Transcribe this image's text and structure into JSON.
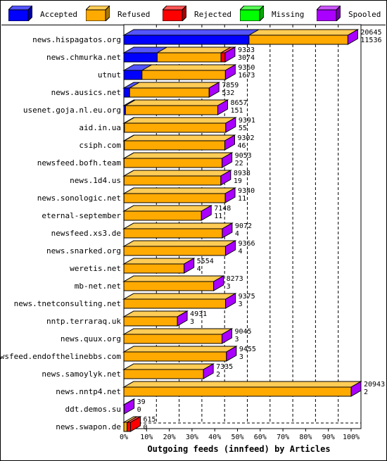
{
  "legend": [
    {
      "label": "Accepted",
      "color": "#0000ff"
    },
    {
      "label": "Refused",
      "color": "#ffaa00"
    },
    {
      "label": "Rejected",
      "color": "#ff0000"
    },
    {
      "label": "Missing",
      "color": "#00ff00"
    },
    {
      "label": "Spooled",
      "color": "#aa00ff"
    }
  ],
  "chart_data": {
    "type": "bar",
    "orientation": "horizontal",
    "stacked": true,
    "title": "",
    "xlabel": "Outgoing feeds (innfeed) by Articles",
    "ylabel": "",
    "x_ticks": [
      "0%",
      "10%",
      "20%",
      "30%",
      "40%",
      "50%",
      "60%",
      "70%",
      "80%",
      "90%",
      "100%"
    ],
    "xlim": [
      0,
      20943
    ],
    "grid": true,
    "categories": [
      "news.hispagatos.org",
      "news.chmurka.net",
      "utnut",
      "news.ausics.net",
      "usenet.goja.nl.eu.org",
      "aid.in.ua",
      "csiph.com",
      "newsfeed.bofh.team",
      "news.1d4.us",
      "news.sonologic.net",
      "eternal-september",
      "newsfeed.xs3.de",
      "news.snarked.org",
      "weretis.net",
      "mb-net.net",
      "news.tnetconsulting.net",
      "nntp.terraraq.uk",
      "news.quux.org",
      "newsfeed.endofthelinebbs.com",
      "news.samoylyk.net",
      "news.nntp4.net",
      "ddt.demos.su",
      "news.swapon.de"
    ],
    "series": [
      {
        "name": "Accepted",
        "values": [
          11536,
          3074,
          1673,
          532,
          151,
          55,
          46,
          22,
          19,
          11,
          11,
          4,
          4,
          4,
          3,
          3,
          3,
          3,
          3,
          2,
          2,
          0,
          0
        ]
      },
      {
        "name": "Refused",
        "values": [
          9109,
          5879,
          7687,
          7327,
          8506,
          9336,
          9256,
          9031,
          8919,
          9329,
          7137,
          9068,
          9362,
          5550,
          8270,
          9372,
          4928,
          9042,
          9452,
          7333,
          20941,
          39,
          300
        ]
      },
      {
        "name": "Rejected",
        "values": [
          0,
          380,
          0,
          0,
          0,
          0,
          0,
          0,
          0,
          0,
          0,
          0,
          0,
          0,
          0,
          0,
          0,
          0,
          0,
          0,
          0,
          0,
          315
        ]
      },
      {
        "name": "Missing",
        "values": [
          0,
          0,
          0,
          0,
          0,
          0,
          0,
          0,
          0,
          0,
          0,
          0,
          0,
          0,
          0,
          0,
          0,
          0,
          0,
          0,
          0,
          0,
          0
        ]
      }
    ],
    "total_labels": [
      "20645",
      "9333",
      "9360",
      "7859",
      "8657",
      "9391",
      "9302",
      "9053",
      "8938",
      "9340",
      "7148",
      "9072",
      "9366",
      "5554",
      "8273",
      "9375",
      "4931",
      "9045",
      "9455",
      "7335",
      "20943",
      "39",
      "615"
    ],
    "accepted_labels": [
      "11536",
      "3074",
      "1673",
      "532",
      "151",
      "55",
      "46",
      "22",
      "19",
      "11",
      "11",
      "4",
      "4",
      "4",
      "3",
      "3",
      "3",
      "3",
      "3",
      "2",
      "2",
      "0",
      "0"
    ]
  }
}
